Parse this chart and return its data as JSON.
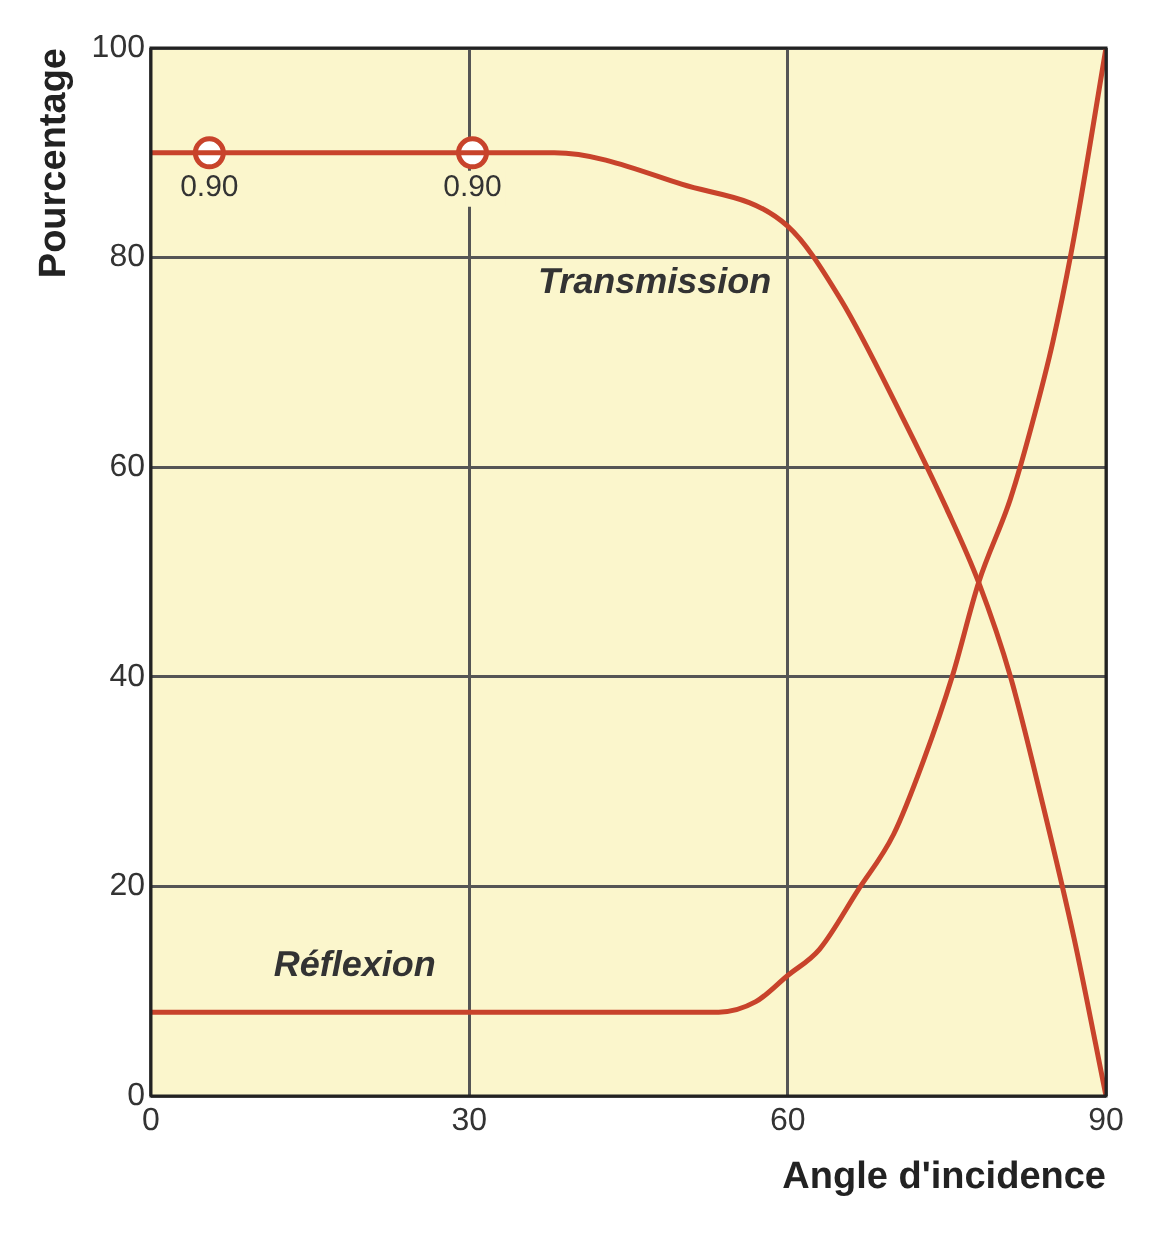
{
  "chart_data": {
    "type": "line",
    "xlabel": "Angle d'incidence",
    "ylabel": "Pourcentage",
    "xlim": [
      0,
      90
    ],
    "ylim": [
      0,
      100
    ],
    "xticks": [
      0,
      30,
      60,
      90
    ],
    "yticks": [
      0,
      20,
      40,
      60,
      80,
      100
    ],
    "grid": true,
    "legend": false,
    "marker": "none",
    "line_style": "solid",
    "series": [
      {
        "name": "Transmission",
        "color": "#c8432b",
        "x": [
          0,
          38,
          50,
          60,
          65,
          70.7,
          75,
          78,
          81,
          84,
          87,
          90
        ],
        "values": [
          90,
          90,
          87,
          83,
          76,
          65,
          56,
          49,
          40,
          28,
          15,
          0
        ]
      },
      {
        "name": "Réflexion",
        "color": "#c8432b",
        "x": [
          0,
          53.5,
          57,
          60,
          63,
          66.6,
          70,
          72.8,
          75.5,
          78,
          81,
          83,
          85,
          87,
          90
        ],
        "values": [
          8,
          8,
          9,
          11.5,
          14,
          19.6,
          25,
          32,
          40,
          49,
          57,
          64,
          72,
          82,
          100
        ]
      },
      {
        "type": "scatter",
        "marker": "circle",
        "color": "#c8432b",
        "x": [
          5.5,
          30.3
        ],
        "values": [
          90,
          90
        ]
      }
    ],
    "annotations": [
      {
        "text": "0.90",
        "x": 5.5,
        "y": 90
      },
      {
        "text": "0.90",
        "x": 30.3,
        "y": 90
      }
    ]
  }
}
